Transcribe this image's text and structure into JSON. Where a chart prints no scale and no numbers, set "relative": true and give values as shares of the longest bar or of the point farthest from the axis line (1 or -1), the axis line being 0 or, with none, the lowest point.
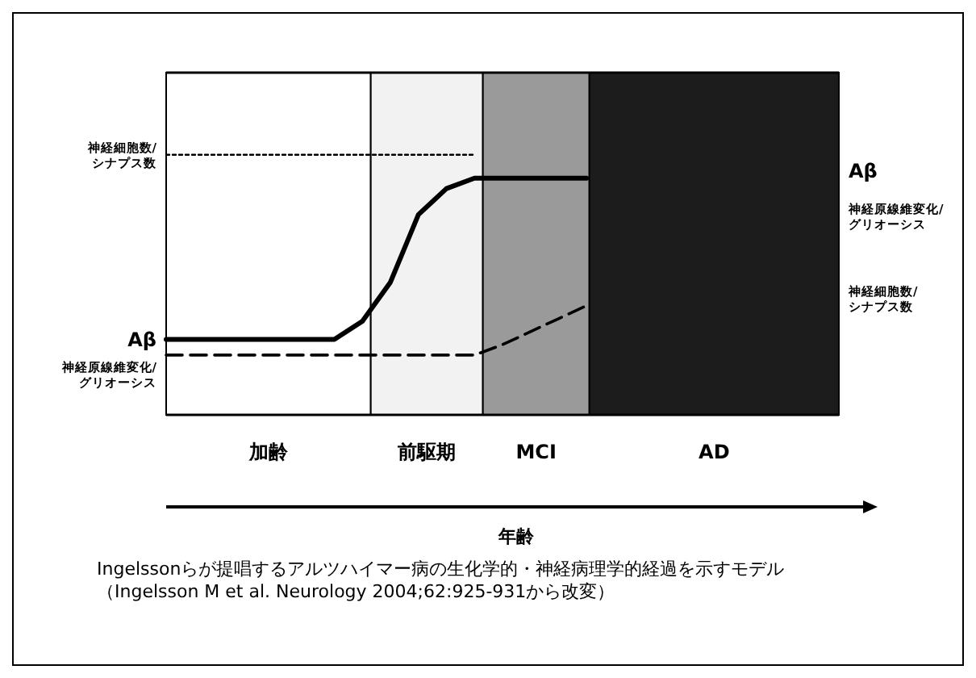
{
  "chart_data": {
    "type": "line",
    "relative": true,
    "categories": [
      null,
      null,
      null,
      null,
      null,
      null,
      null,
      null,
      null,
      null,
      null,
      null,
      null,
      null,
      null,
      null,
      null,
      null,
      null,
      null,
      null,
      null,
      null,
      null,
      null
    ],
    "series": [
      {
        "name": "神経細胞数/シナプス数",
        "color": "#000000",
        "line_style": "dotted",
        "values": [
          1,
          1,
          1,
          1,
          1,
          1,
          1,
          1,
          1,
          1,
          1,
          1,
          null,
          null,
          null,
          null,
          null,
          null,
          null,
          null,
          null,
          null,
          null,
          null,
          null
        ]
      },
      {
        "name": "Aβ",
        "color": "#000000",
        "line_style": "solid",
        "values": [
          0.29,
          0.29,
          0.29,
          0.29,
          0.29,
          0.29,
          0.29,
          0.36,
          0.51,
          0.77,
          0.87,
          0.91,
          0.91,
          0.91,
          0.91,
          0.91,
          null,
          null,
          null,
          null,
          null,
          null,
          null,
          null,
          null
        ]
      },
      {
        "name": "神経原線維変化/グリオーシス",
        "color": "#000000",
        "line_style": "dashed",
        "values": [
          0.23,
          0.23,
          0.23,
          0.23,
          0.23,
          0.23,
          0.23,
          0.23,
          0.23,
          0.23,
          0.23,
          0.23,
          0.27,
          0.32,
          0.37,
          0.42,
          null,
          null,
          null,
          null,
          null,
          null,
          null,
          null,
          null
        ]
      }
    ],
    "annotations": [
      "Aβ",
      "神経原線維変化/グリオーシス",
      "神経細胞数/シナプス数",
      "加齢",
      "前駆期",
      "MCI",
      "AD",
      "年齢",
      "Ingelssonらが提唱するアルツハイマー病の生化学的・神経病理学的経過を示すモデル（Ingelsson M et al. Neurology 2004;62:925-931から改変）"
    ]
  }
}
